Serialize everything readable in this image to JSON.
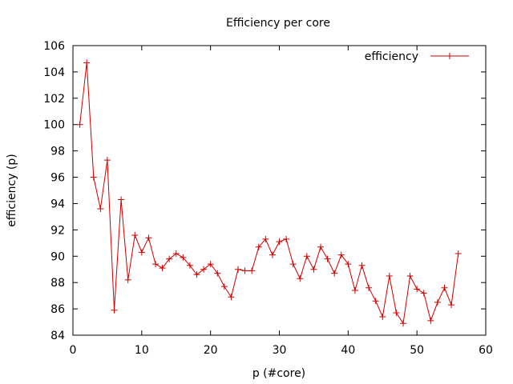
{
  "chart_data": {
    "type": "line",
    "title": "Efficiency per core",
    "xlabel": "p (#core)",
    "ylabel": "efficiency (p)",
    "xlim": [
      0,
      60
    ],
    "ylim": [
      84,
      106
    ],
    "x_ticks": [
      0,
      10,
      20,
      30,
      40,
      50,
      60
    ],
    "y_ticks": [
      84,
      86,
      88,
      90,
      92,
      94,
      96,
      98,
      100,
      102,
      104,
      106
    ],
    "x_tick_labels": [
      "0",
      "10",
      "20",
      "30",
      "40",
      "50",
      "60"
    ],
    "y_tick_labels": [
      "84",
      "86",
      "88",
      "90",
      "92",
      "94",
      "96",
      "98",
      "100",
      "102",
      "104",
      "106"
    ],
    "grid": false,
    "legend_position": "top-right",
    "series": [
      {
        "name": "efficiency",
        "color": "#cc0000",
        "marker": "plus",
        "x": [
          1,
          2,
          3,
          4,
          5,
          6,
          7,
          8,
          9,
          10,
          11,
          12,
          13,
          14,
          15,
          16,
          17,
          18,
          19,
          20,
          21,
          22,
          23,
          24,
          25,
          26,
          27,
          28,
          29,
          30,
          31,
          32,
          33,
          34,
          35,
          36,
          37,
          38,
          39,
          40,
          41,
          42,
          43,
          44,
          45,
          46,
          47,
          48,
          49,
          50,
          51,
          52,
          53,
          54,
          55,
          56
        ],
        "values": [
          100.0,
          104.7,
          96.0,
          93.6,
          97.3,
          85.9,
          94.3,
          88.2,
          91.6,
          90.3,
          91.4,
          89.4,
          89.1,
          89.8,
          90.2,
          89.9,
          89.3,
          88.6,
          89.0,
          89.4,
          88.7,
          87.7,
          86.9,
          89.0,
          88.9,
          88.9,
          90.7,
          91.3,
          90.1,
          91.1,
          91.3,
          89.4,
          88.3,
          90.0,
          89.0,
          90.7,
          89.8,
          88.7,
          90.1,
          89.4,
          87.4,
          89.3,
          87.6,
          86.6,
          85.4,
          88.5,
          85.7,
          84.9,
          88.5,
          87.5,
          87.2,
          85.1,
          86.5,
          87.6,
          86.3,
          90.2
        ]
      }
    ]
  }
}
